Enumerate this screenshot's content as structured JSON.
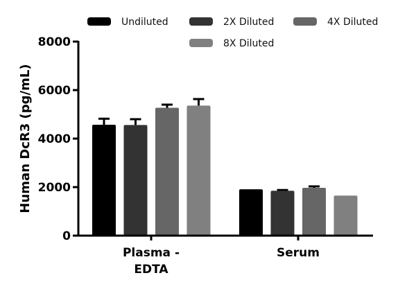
{
  "chart_data": {
    "type": "bar",
    "title": "",
    "xlabel": "",
    "ylabel": "Human DcR3 (pg/mL)",
    "ylim": [
      0,
      8000
    ],
    "yticks": [
      0,
      2000,
      4000,
      6000,
      8000
    ],
    "grid": false,
    "legend_position": "top",
    "categories": [
      "Plasma - EDTA",
      "Serum"
    ],
    "category_lines": [
      [
        "Plasma -",
        "EDTA"
      ],
      [
        "Serum"
      ]
    ],
    "series": [
      {
        "name": "Undiluted",
        "color": "#000000",
        "values": [
          4570,
          1910
        ],
        "errors": [
          250,
          0
        ]
      },
      {
        "name": "2X Diluted",
        "color": "#333333",
        "values": [
          4560,
          1850
        ],
        "errors": [
          240,
          30
        ]
      },
      {
        "name": "4X Diluted",
        "color": "#666666",
        "values": [
          5270,
          1970
        ],
        "errors": [
          130,
          60
        ]
      },
      {
        "name": "8X Diluted",
        "color": "#808080",
        "values": [
          5360,
          1650
        ],
        "errors": [
          270,
          0
        ]
      }
    ]
  }
}
